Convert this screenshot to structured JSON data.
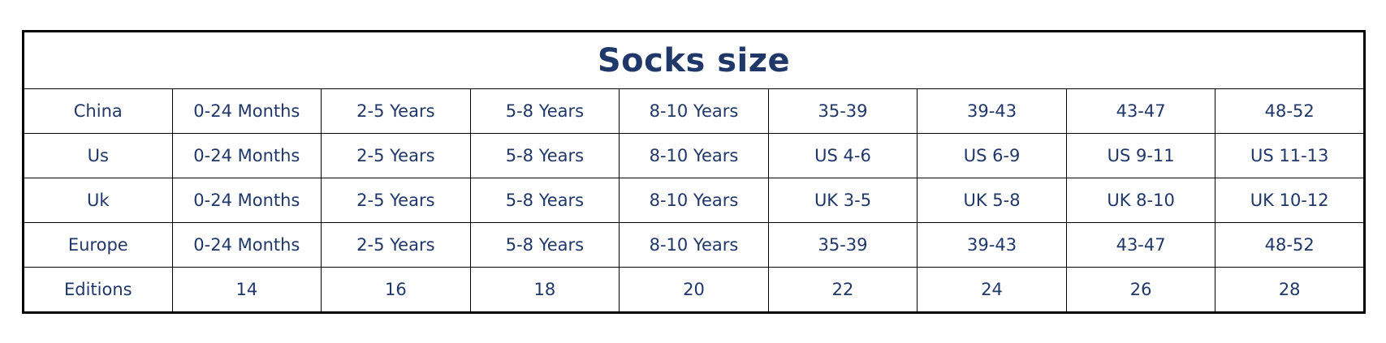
{
  "title": "Socks size",
  "text_color": "#1f3769",
  "rows": [
    {
      "label": "China",
      "cells": [
        "0-24 Months",
        "2-5 Years",
        "5-8 Years",
        "8-10 Years",
        "35-39",
        "39-43",
        "43-47",
        "48-52"
      ]
    },
    {
      "label": "Us",
      "cells": [
        "0-24 Months",
        "2-5 Years",
        "5-8 Years",
        "8-10 Years",
        "US 4-6",
        "US 6-9",
        "US 9-11",
        "US 11-13"
      ]
    },
    {
      "label": "Uk",
      "cells": [
        "0-24 Months",
        "2-5 Years",
        "5-8 Years",
        "8-10 Years",
        "UK 3-5",
        "UK 5-8",
        "UK 8-10",
        "UK 10-12"
      ]
    },
    {
      "label": "Europe",
      "cells": [
        "0-24 Months",
        "2-5 Years",
        "5-8 Years",
        "8-10 Years",
        "35-39",
        "39-43",
        "43-47",
        "48-52"
      ]
    },
    {
      "label": "Editions",
      "cells": [
        "14",
        "16",
        "18",
        "20",
        "22",
        "24",
        "26",
        "28"
      ]
    }
  ]
}
